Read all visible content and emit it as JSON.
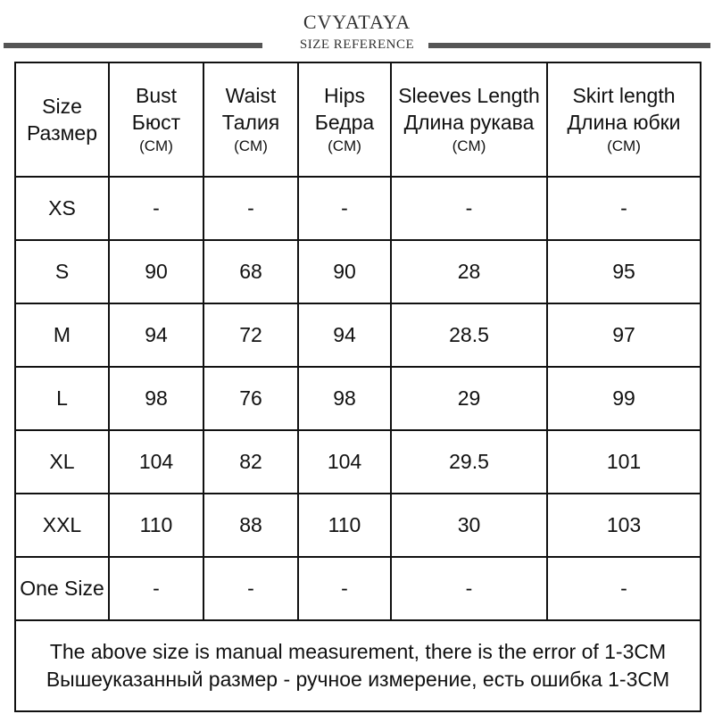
{
  "header": {
    "brand": "CVYATAYA",
    "subtitle": "SIZE REFERENCE"
  },
  "table": {
    "columns": [
      {
        "en": "Size",
        "ru": "Размер",
        "unit": ""
      },
      {
        "en": "Bust",
        "ru": "Бюст",
        "unit": "(CM)"
      },
      {
        "en": "Waist",
        "ru": "Талия",
        "unit": "(CM)"
      },
      {
        "en": "Hips",
        "ru": "Бедра",
        "unit": "(CM)"
      },
      {
        "en": "Sleeves Length",
        "ru": "Длина рукава",
        "unit": "(CM)"
      },
      {
        "en": "Skirt length",
        "ru": "Длина юбки",
        "unit": "(CM)"
      }
    ],
    "rows": [
      {
        "size": "XS",
        "bust": "-",
        "waist": "-",
        "hips": "-",
        "sleeves": "-",
        "skirt": "-"
      },
      {
        "size": "S",
        "bust": "90",
        "waist": "68",
        "hips": "90",
        "sleeves": "28",
        "skirt": "95"
      },
      {
        "size": "M",
        "bust": "94",
        "waist": "72",
        "hips": "94",
        "sleeves": "28.5",
        "skirt": "97"
      },
      {
        "size": "L",
        "bust": "98",
        "waist": "76",
        "hips": "98",
        "sleeves": "29",
        "skirt": "99"
      },
      {
        "size": "XL",
        "bust": "104",
        "waist": "82",
        "hips": "104",
        "sleeves": "29.5",
        "skirt": "101"
      },
      {
        "size": "XXL",
        "bust": "110",
        "waist": "88",
        "hips": "110",
        "sleeves": "30",
        "skirt": "103"
      },
      {
        "size": "One Size",
        "bust": "-",
        "waist": "-",
        "hips": "-",
        "sleeves": "-",
        "skirt": "-"
      }
    ]
  },
  "note": {
    "en": "The above size is manual measurement, there is the error of 1-3CM",
    "ru": "Вышеуказанный размер - ручное измерение, есть ошибка 1-3CM"
  }
}
